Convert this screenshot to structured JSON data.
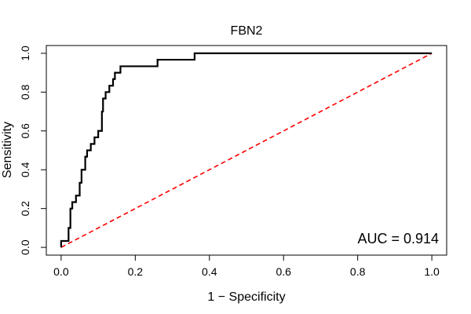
{
  "chart_data": {
    "type": "line",
    "title": "FBN2",
    "xlabel": "1 − Specificity",
    "ylabel": "Sensitivity",
    "xlim": [
      -0.04,
      1.04
    ],
    "ylim": [
      -0.04,
      1.04
    ],
    "x_ticks": [
      "0.0",
      "0.2",
      "0.4",
      "0.6",
      "0.8",
      "1.0"
    ],
    "y_ticks": [
      "0.0",
      "0.2",
      "0.4",
      "0.6",
      "0.8",
      "1.0"
    ],
    "annotation": "AUC = 0.914",
    "grid": false,
    "series": [
      {
        "style": "step",
        "color": "#000000",
        "points": [
          [
            0.0,
            0.0
          ],
          [
            0.0,
            0.033
          ],
          [
            0.02,
            0.033
          ],
          [
            0.02,
            0.1
          ],
          [
            0.025,
            0.1
          ],
          [
            0.025,
            0.2
          ],
          [
            0.03,
            0.2
          ],
          [
            0.03,
            0.233
          ],
          [
            0.04,
            0.233
          ],
          [
            0.04,
            0.267
          ],
          [
            0.05,
            0.267
          ],
          [
            0.05,
            0.333
          ],
          [
            0.055,
            0.333
          ],
          [
            0.055,
            0.4
          ],
          [
            0.065,
            0.4
          ],
          [
            0.065,
            0.467
          ],
          [
            0.07,
            0.467
          ],
          [
            0.07,
            0.5
          ],
          [
            0.08,
            0.5
          ],
          [
            0.08,
            0.533
          ],
          [
            0.09,
            0.533
          ],
          [
            0.09,
            0.567
          ],
          [
            0.1,
            0.567
          ],
          [
            0.1,
            0.6
          ],
          [
            0.11,
            0.6
          ],
          [
            0.11,
            0.7
          ],
          [
            0.113,
            0.7
          ],
          [
            0.113,
            0.767
          ],
          [
            0.12,
            0.767
          ],
          [
            0.12,
            0.8
          ],
          [
            0.13,
            0.8
          ],
          [
            0.13,
            0.833
          ],
          [
            0.14,
            0.833
          ],
          [
            0.14,
            0.867
          ],
          [
            0.145,
            0.867
          ],
          [
            0.145,
            0.9
          ],
          [
            0.16,
            0.9
          ],
          [
            0.16,
            0.933
          ],
          [
            0.26,
            0.933
          ],
          [
            0.26,
            0.967
          ],
          [
            0.36,
            0.967
          ],
          [
            0.36,
            1.0
          ],
          [
            1.0,
            1.0
          ]
        ]
      },
      {
        "style": "dashed",
        "color": "#ff0000",
        "points": [
          [
            0.0,
            0.0
          ],
          [
            1.0,
            1.0
          ]
        ]
      }
    ]
  }
}
